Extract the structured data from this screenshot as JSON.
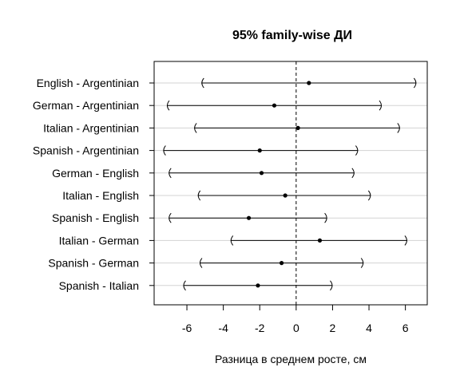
{
  "chart_data": {
    "type": "interval",
    "title": "95% family-wise ДИ",
    "xlabel": "Разница в среднем росте, см",
    "ylabel": "",
    "xlim": [
      -7.8,
      7.2
    ],
    "xticks": [
      -6,
      -4,
      -2,
      0,
      2,
      4,
      6
    ],
    "reference_line": 0,
    "grid": "horizontal",
    "intervals": [
      {
        "label": "English - Argentinian",
        "estimate": 0.7,
        "lower": -5.2,
        "upper": 6.6
      },
      {
        "label": "German - Argentinian",
        "estimate": -1.2,
        "lower": -7.1,
        "upper": 4.7
      },
      {
        "label": "Italian - Argentinian",
        "estimate": 0.1,
        "lower": -5.6,
        "upper": 5.7
      },
      {
        "label": "Spanish - Argentinian",
        "estimate": -2.0,
        "lower": -7.3,
        "upper": 3.4
      },
      {
        "label": "German - English",
        "estimate": -1.9,
        "lower": -7.0,
        "upper": 3.2
      },
      {
        "label": "Italian - English",
        "estimate": -0.6,
        "lower": -5.4,
        "upper": 4.1
      },
      {
        "label": "Spanish - English",
        "estimate": -2.6,
        "lower": -7.0,
        "upper": 1.7
      },
      {
        "label": "Italian - German",
        "estimate": 1.3,
        "lower": -3.6,
        "upper": 6.1
      },
      {
        "label": "Spanish - German",
        "estimate": -0.8,
        "lower": -5.3,
        "upper": 3.7
      },
      {
        "label": "Spanish - Italian",
        "estimate": -2.1,
        "lower": -6.2,
        "upper": 2.0
      }
    ]
  }
}
